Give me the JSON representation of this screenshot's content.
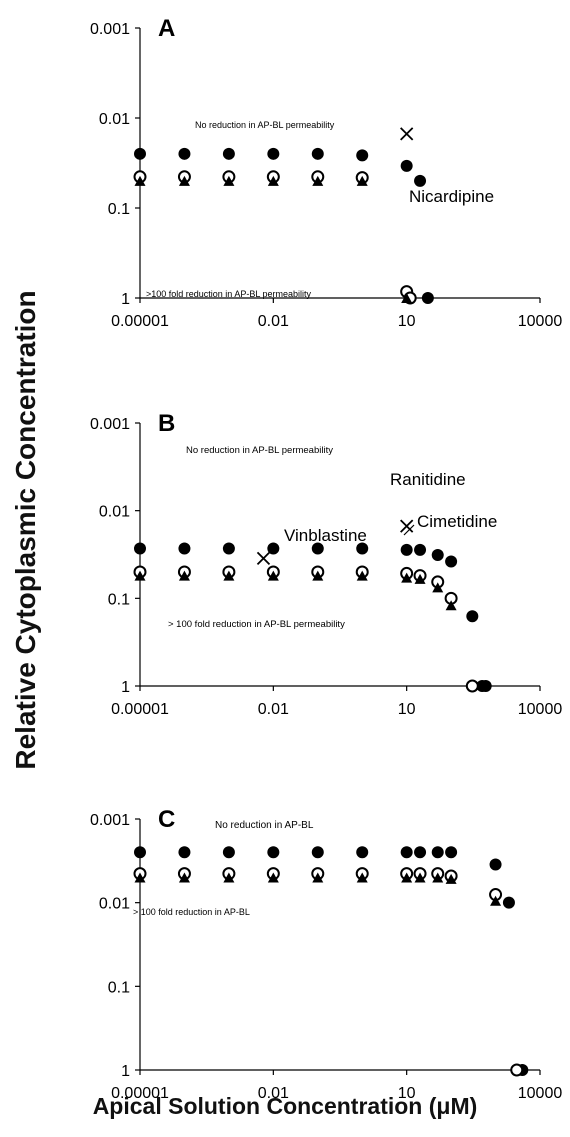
{
  "ylabel": "Relative Cytoplasmic Concentration",
  "xlabel": "Apical Solution Concentration (μM)",
  "chart_data": [
    {
      "type": "scatter",
      "panel_label": "A",
      "x_scale": "log",
      "y_scale": "log-reversed",
      "xlim": [
        1e-05,
        10000
      ],
      "ylim": [
        1,
        0.001
      ],
      "x_ticks": [
        "0.00001",
        "0.01",
        "10",
        "10000"
      ],
      "y_ticks": [
        "0.001",
        "0.01",
        "0.1",
        "1"
      ],
      "annotations": {
        "top_region": "No reduction in AP-BL permeability",
        "bottom_region": ">100 fold reduction in AP-BL permeability"
      },
      "series": [
        {
          "marker": "filled-circle",
          "x": [
            1e-05,
            0.0001,
            0.001,
            0.01,
            0.1,
            1,
            10,
            20,
            30
          ],
          "y": [
            0.025,
            0.025,
            0.025,
            0.025,
            0.025,
            0.026,
            0.034,
            0.05,
            1
          ]
        },
        {
          "marker": "open-circle",
          "x": [
            1e-05,
            0.0001,
            0.001,
            0.01,
            0.1,
            1,
            10,
            12
          ],
          "y": [
            0.045,
            0.045,
            0.045,
            0.045,
            0.045,
            0.046,
            0.85,
            1
          ]
        },
        {
          "marker": "filled-triangle",
          "x": [
            1e-05,
            0.0001,
            0.001,
            0.01,
            0.1,
            1,
            10
          ],
          "y": [
            0.05,
            0.05,
            0.05,
            0.05,
            0.05,
            0.05,
            1
          ]
        }
      ],
      "labeled_points": [
        {
          "label": "Nicardipine",
          "marker": "x",
          "x": 10,
          "y": 0.015
        }
      ]
    },
    {
      "type": "scatter",
      "panel_label": "B",
      "x_scale": "log",
      "y_scale": "log-reversed",
      "xlim": [
        1e-05,
        10000
      ],
      "ylim": [
        1,
        0.001
      ],
      "x_ticks": [
        "0.00001",
        "0.01",
        "10",
        "10000"
      ],
      "y_ticks": [
        "0.001",
        "0.01",
        "0.1",
        "1"
      ],
      "annotations": {
        "top_region": "No reduction in AP-BL permeability",
        "bottom_region": "> 100 fold reduction in AP-BL permeability"
      },
      "series": [
        {
          "marker": "filled-circle",
          "x": [
            1e-05,
            0.0001,
            0.001,
            0.01,
            0.1,
            1,
            10,
            20,
            50,
            100,
            300,
            500,
            600
          ],
          "y": [
            0.027,
            0.027,
            0.027,
            0.027,
            0.027,
            0.027,
            0.028,
            0.028,
            0.032,
            0.038,
            0.16,
            1,
            1
          ]
        },
        {
          "marker": "open-circle",
          "x": [
            1e-05,
            0.0001,
            0.001,
            0.01,
            0.1,
            1,
            10,
            20,
            50,
            100,
            300
          ],
          "y": [
            0.05,
            0.05,
            0.05,
            0.05,
            0.05,
            0.05,
            0.052,
            0.055,
            0.065,
            0.1,
            1
          ]
        },
        {
          "marker": "filled-triangle",
          "x": [
            1e-05,
            0.0001,
            0.001,
            0.01,
            0.1,
            1,
            10,
            20,
            50,
            100
          ],
          "y": [
            0.055,
            0.055,
            0.055,
            0.055,
            0.055,
            0.055,
            0.058,
            0.06,
            0.075,
            0.12
          ]
        }
      ],
      "labeled_points": [
        {
          "label": "Vinblastine",
          "marker": "x",
          "x": 0.006,
          "y": 0.035
        },
        {
          "label": "Ranitidine",
          "marker": "x",
          "x": 10,
          "y": 0.015
        },
        {
          "label": "Cimetidine",
          "marker": "none",
          "x": 20,
          "y": 0.028
        }
      ]
    },
    {
      "type": "scatter",
      "panel_label": "C",
      "x_scale": "log",
      "y_scale": "log-reversed",
      "xlim": [
        1e-05,
        10000
      ],
      "ylim": [
        1,
        0.001
      ],
      "x_ticks": [
        "0.00001",
        "0.01",
        "10",
        "10000"
      ],
      "y_ticks": [
        "0.001",
        "0.01",
        "0.1",
        "1"
      ],
      "annotations": {
        "top_region": "No reduction in AP-BL",
        "bottom_region": "> 100 fold reduction in AP-BL"
      },
      "series": [
        {
          "marker": "filled-circle",
          "x": [
            1e-05,
            0.0001,
            0.001,
            0.01,
            0.1,
            1,
            10,
            20,
            50,
            100,
            1000,
            2000,
            3000,
            4000
          ],
          "y": [
            0.0025,
            0.0025,
            0.0025,
            0.0025,
            0.0025,
            0.0025,
            0.0025,
            0.0025,
            0.0025,
            0.0025,
            0.0035,
            0.01,
            1,
            1
          ]
        },
        {
          "marker": "open-circle",
          "x": [
            1e-05,
            0.0001,
            0.001,
            0.01,
            0.1,
            1,
            10,
            20,
            50,
            100,
            1000,
            3000
          ],
          "y": [
            0.0045,
            0.0045,
            0.0045,
            0.0045,
            0.0045,
            0.0045,
            0.0045,
            0.0045,
            0.0045,
            0.0048,
            0.008,
            1
          ]
        },
        {
          "marker": "filled-triangle",
          "x": [
            1e-05,
            0.0001,
            0.001,
            0.01,
            0.1,
            1,
            10,
            20,
            50,
            100,
            1000
          ],
          "y": [
            0.005,
            0.005,
            0.005,
            0.005,
            0.005,
            0.005,
            0.005,
            0.005,
            0.005,
            0.0052,
            0.0095
          ]
        }
      ],
      "labeled_points": []
    }
  ]
}
